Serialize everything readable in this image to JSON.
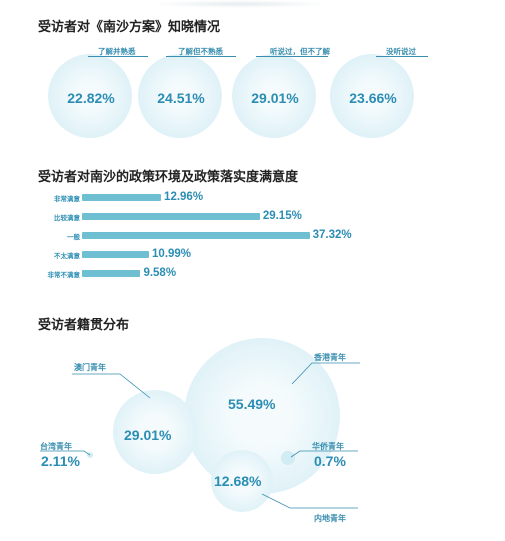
{
  "chart_data": [
    {
      "type": "bubble",
      "title": "受访者对《南沙方案》知晓情况",
      "categories": [
        "了解并熟悉",
        "了解但不熟悉",
        "听说过，但不了解",
        "没听说过"
      ],
      "values": [
        22.82,
        24.51,
        29.01,
        23.66
      ],
      "display": [
        "22.82%",
        "24.51%",
        "29.01%",
        "23.66%"
      ],
      "unit": "%"
    },
    {
      "type": "bar",
      "orientation": "horizontal",
      "title": "受访者对南沙的政策环境及政策落实度满意度",
      "categories": [
        "非常满意",
        "比较满意",
        "一般",
        "不太满意",
        "非常不满意"
      ],
      "values": [
        12.96,
        29.15,
        37.32,
        10.99,
        9.58
      ],
      "display": [
        "12.96%",
        "29.15%",
        "37.32%",
        "10.99%",
        "9.58%"
      ],
      "unit": "%"
    },
    {
      "type": "bubble",
      "title": "受访者籍贯分布",
      "categories": [
        "香港青年",
        "澳门青年",
        "内地青年",
        "台湾青年",
        "华侨青年"
      ],
      "values": [
        55.49,
        29.01,
        12.68,
        2.11,
        0.7
      ],
      "display": [
        "55.49%",
        "29.01%",
        "12.68%",
        "2.11%",
        "0.7%"
      ],
      "unit": "%"
    }
  ],
  "colors": {
    "accent": "#2b8db3",
    "bar": "#6fbfd2",
    "bubble_edge": "#d2ecf4",
    "bubble_center": "#f5fbfd",
    "title": "#222222"
  }
}
